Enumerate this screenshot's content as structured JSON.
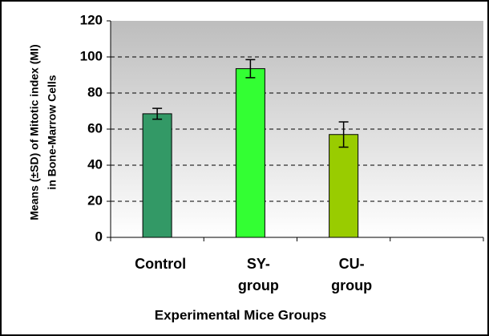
{
  "chart_data": {
    "type": "bar",
    "xlabel": "Experimental Mice Groups",
    "ylabel": [
      "Means (±SD) of Mitotic index (MI)",
      "in Bone-Marrow Cells"
    ],
    "categories": [
      "Control",
      "SY- group",
      "CU- group",
      null
    ],
    "values": [
      68.5,
      93.5,
      57,
      null
    ],
    "errors": [
      3,
      5,
      7,
      null
    ],
    "colors": [
      "#339966",
      "#33ff33",
      "#99cc00",
      null
    ],
    "ylim": [
      0,
      120
    ],
    "yticks": [
      0,
      20,
      40,
      60,
      80,
      100,
      120
    ],
    "grid": true
  }
}
